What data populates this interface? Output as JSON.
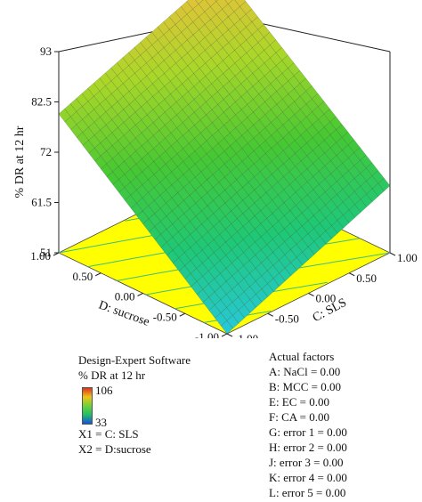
{
  "chart_data": {
    "type": "surface",
    "zlabel": "% DR at 12 hr",
    "xlabel": "C: SLS",
    "ylabel": "D: sucrose",
    "x_ticks": [
      "-1.00",
      "-0.50",
      "0.00",
      "0.50",
      "1.00"
    ],
    "y_ticks": [
      "-1.00",
      "-0.50",
      "0.00",
      "0.50",
      "1.00"
    ],
    "z_ticks": [
      "51",
      "61.5",
      "72",
      "82.5",
      "93"
    ],
    "xlim": [
      -1,
      1
    ],
    "ylim": [
      -1,
      1
    ],
    "zlim": [
      51,
      93
    ],
    "surface_corners": {
      "sls_minus1_sucrose_minus1": 51,
      "sls_plus1_sucrose_minus1": 65,
      "sls_minus1_sucrose_plus1": 80,
      "sls_plus1_sucrose_plus1": 93
    },
    "contour_floor": true,
    "floor_color": "#ffff00"
  },
  "legend": {
    "software": "Design-Expert Software",
    "response": "% DR at 12 hr",
    "max": "106",
    "min": "33",
    "x1": "X1 = C: SLS",
    "x2": "X2 = D:sucrose"
  },
  "actual_factors": {
    "title": "Actual factors",
    "items": [
      "A: NaCl = 0.00",
      "B: MCC = 0.00",
      "E: EC = 0.00",
      "F: CA = 0.00",
      "G: error 1 = 0.00",
      "H: error 2 = 0.00",
      "J: error 3 = 0.00",
      "K: error 4 = 0.00",
      "L: error 5 = 0.00"
    ]
  }
}
